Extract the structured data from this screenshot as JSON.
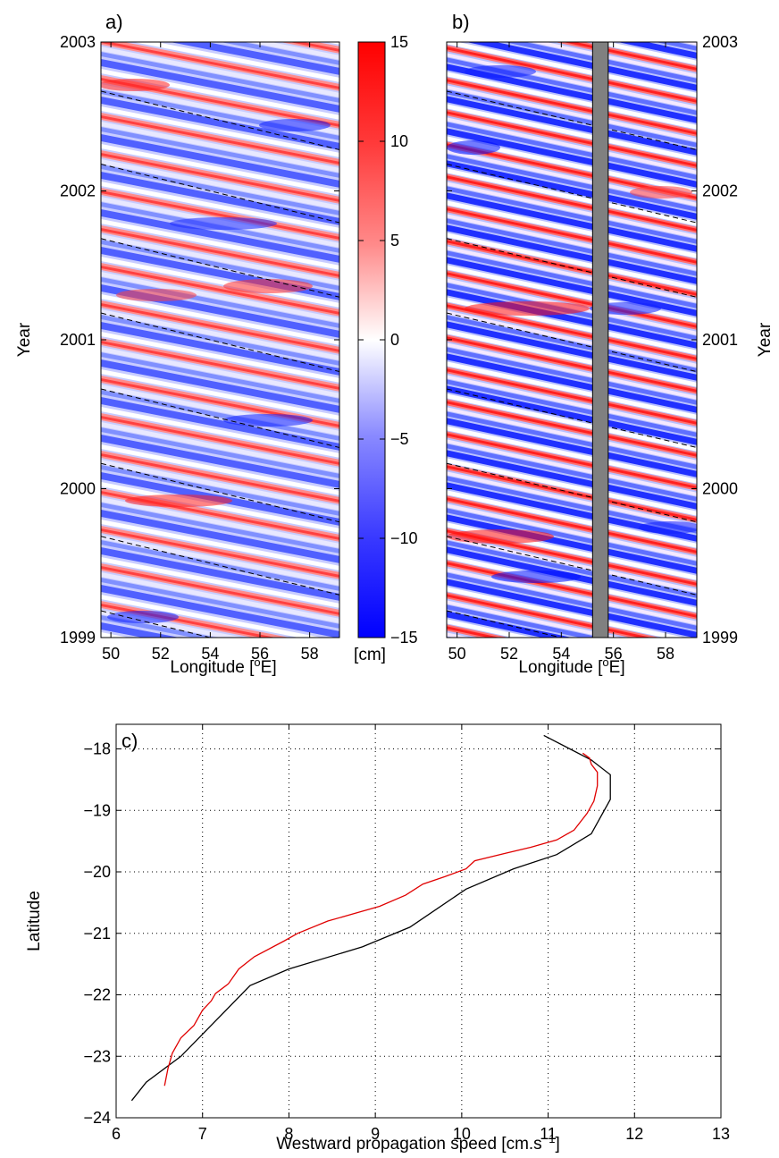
{
  "chart_data": [
    {
      "panel_label": "a)",
      "type": "heatmap",
      "xlabel": "Longitude [°E]",
      "ylabel": "Year",
      "xlim": [
        49.6,
        59.2
      ],
      "ylim": [
        1999,
        2003
      ],
      "x_ticks": [
        50,
        52,
        54,
        56,
        58
      ],
      "y_ticks": [
        1999,
        2000,
        2001,
        2002,
        2003
      ],
      "value_range": [
        -15,
        15
      ],
      "dashed_lines": {
        "slope_years_per_degree": -0.041,
        "anchor_years_at_49_6E": [
          1999.18,
          1999.68,
          2000.17,
          2000.67,
          2001.18,
          2001.68,
          2002.18,
          2002.67
        ]
      }
    },
    {
      "panel_label": "b)",
      "type": "heatmap",
      "xlabel": "Longitude [°E]",
      "ylabel": "Year",
      "xlim": [
        49.6,
        59.2
      ],
      "ylim": [
        1999,
        2003
      ],
      "x_ticks": [
        50,
        52,
        54,
        56,
        58
      ],
      "y_ticks": [
        1999,
        2000,
        2001,
        2002,
        2003
      ],
      "value_range": [
        -15,
        15
      ],
      "masked_longitudes": [
        55.2,
        55.8
      ],
      "dashed_lines": {
        "slope_years_per_degree": -0.041,
        "anchor_years_at_49_6E": [
          1999.18,
          1999.68,
          2000.17,
          2000.67,
          2001.18,
          2001.68,
          2002.18,
          2002.67
        ]
      }
    },
    {
      "type": "colorbar",
      "label": "[cm]",
      "range": [
        -15,
        15
      ],
      "ticks": [
        -15,
        -10,
        -5,
        0,
        5,
        10,
        15
      ],
      "tick_labels": [
        "−15",
        "−10",
        "−5",
        "0",
        "5",
        "10",
        "15"
      ],
      "colors": {
        "low": "#0000ff",
        "mid": "#ffffff",
        "high": "#ff0000"
      }
    },
    {
      "panel_label": "c)",
      "type": "line",
      "xlabel": "Westward propagation speed [cm.s",
      "xlabel_sup": "−1",
      "xlabel_end": "]",
      "ylabel": "Latitude",
      "xlim": [
        6,
        13
      ],
      "ylim": [
        -24,
        -17.6
      ],
      "x_ticks": [
        6,
        7,
        8,
        9,
        10,
        11,
        12,
        13
      ],
      "y_ticks": [
        -24,
        -23,
        -22,
        -21,
        -20,
        -19,
        -18
      ],
      "y_tick_labels": [
        "−24",
        "−23",
        "−22",
        "−21",
        "−20",
        "−19",
        "−18"
      ],
      "grid": "dotted",
      "series": [
        {
          "color": "#000000",
          "points": [
            [
              6.18,
              -23.72
            ],
            [
              6.35,
              -23.42
            ],
            [
              6.75,
              -23.0
            ],
            [
              7.55,
              -21.85
            ],
            [
              8.0,
              -21.58
            ],
            [
              8.85,
              -21.22
            ],
            [
              9.4,
              -20.9
            ],
            [
              10.05,
              -20.28
            ],
            [
              10.6,
              -19.95
            ],
            [
              11.1,
              -19.72
            ],
            [
              11.5,
              -19.38
            ],
            [
              11.72,
              -18.82
            ],
            [
              11.72,
              -18.42
            ],
            [
              11.5,
              -18.18
            ],
            [
              10.95,
              -17.78
            ]
          ]
        },
        {
          "color": "#e00000",
          "points": [
            [
              6.56,
              -23.48
            ],
            [
              6.6,
              -23.2
            ],
            [
              6.65,
              -22.95
            ],
            [
              6.75,
              -22.7
            ],
            [
              6.9,
              -22.5
            ],
            [
              7.0,
              -22.25
            ],
            [
              7.1,
              -22.1
            ],
            [
              7.15,
              -21.98
            ],
            [
              7.3,
              -21.82
            ],
            [
              7.42,
              -21.58
            ],
            [
              7.6,
              -21.38
            ],
            [
              7.95,
              -21.12
            ],
            [
              8.1,
              -21.0
            ],
            [
              8.45,
              -20.8
            ],
            [
              8.75,
              -20.68
            ],
            [
              9.05,
              -20.56
            ],
            [
              9.35,
              -20.38
            ],
            [
              9.55,
              -20.2
            ],
            [
              9.8,
              -20.08
            ],
            [
              10.05,
              -19.95
            ],
            [
              10.15,
              -19.82
            ],
            [
              10.5,
              -19.7
            ],
            [
              10.8,
              -19.6
            ],
            [
              11.1,
              -19.48
            ],
            [
              11.3,
              -19.32
            ],
            [
              11.45,
              -19.05
            ],
            [
              11.53,
              -18.85
            ],
            [
              11.57,
              -18.6
            ],
            [
              11.57,
              -18.38
            ],
            [
              11.5,
              -18.25
            ],
            [
              11.48,
              -18.15
            ],
            [
              11.4,
              -18.07
            ]
          ]
        }
      ]
    }
  ]
}
